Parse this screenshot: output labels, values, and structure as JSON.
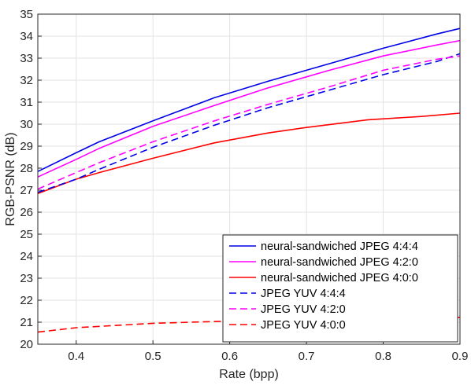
{
  "chart_data": {
    "type": "line",
    "xlabel": "Rate (bpp)",
    "ylabel": "RGB-PSNR (dB)",
    "xlim": [
      0.35,
      0.9
    ],
    "ylim": [
      20,
      35
    ],
    "x_ticks": [
      "0.4",
      "0.5",
      "0.6",
      "0.7",
      "0.8",
      "0.9"
    ],
    "y_ticks": [
      "20",
      "21",
      "22",
      "23",
      "24",
      "25",
      "26",
      "27",
      "28",
      "29",
      "30",
      "31",
      "32",
      "33",
      "34",
      "35"
    ],
    "grid": true,
    "legend_position": "bottom-right",
    "series": [
      {
        "name": "neural-sandwiched JPEG 4:4:4",
        "color": "#0000e6",
        "style": "solid",
        "x": [
          0.35,
          0.4,
          0.43,
          0.5,
          0.58,
          0.65,
          0.73,
          0.8,
          0.87,
          0.9
        ],
        "y": [
          27.85,
          28.7,
          29.2,
          30.15,
          31.2,
          31.95,
          32.75,
          33.45,
          34.1,
          34.35
        ]
      },
      {
        "name": "neural-sandwiched JPEG 4:2:0",
        "color": "#ff00ff",
        "style": "solid",
        "x": [
          0.35,
          0.4,
          0.43,
          0.5,
          0.58,
          0.65,
          0.73,
          0.8,
          0.87,
          0.9
        ],
        "y": [
          27.6,
          28.4,
          28.9,
          29.9,
          30.85,
          31.65,
          32.45,
          33.1,
          33.6,
          33.8
        ]
      },
      {
        "name": "neural-sandwiched JPEG 4:0:0",
        "color": "#ff0000",
        "style": "solid",
        "x": [
          0.35,
          0.4,
          0.43,
          0.5,
          0.58,
          0.65,
          0.7,
          0.78,
          0.85,
          0.9
        ],
        "y": [
          26.85,
          27.5,
          27.8,
          28.45,
          29.15,
          29.6,
          29.85,
          30.2,
          30.35,
          30.5
        ]
      },
      {
        "name": "JPEG YUV 4:4:4",
        "color": "#0000e6",
        "style": "dashed",
        "x": [
          0.35,
          0.4,
          0.43,
          0.5,
          0.58,
          0.65,
          0.73,
          0.8,
          0.87,
          0.9
        ],
        "y": [
          26.9,
          27.5,
          27.95,
          28.95,
          29.95,
          30.75,
          31.55,
          32.25,
          32.85,
          33.2
        ]
      },
      {
        "name": "JPEG YUV 4:2:0",
        "color": "#ff00ff",
        "style": "dashed",
        "x": [
          0.35,
          0.4,
          0.43,
          0.5,
          0.58,
          0.65,
          0.73,
          0.8,
          0.87,
          0.9
        ],
        "y": [
          27.05,
          27.8,
          28.25,
          29.2,
          30.15,
          30.9,
          31.7,
          32.45,
          32.95,
          33.1
        ]
      },
      {
        "name": "JPEG YUV 4:0:0",
        "color": "#ff0000",
        "style": "dashed",
        "x": [
          0.35,
          0.4,
          0.5,
          0.6,
          0.7,
          0.8,
          0.9
        ],
        "y": [
          20.55,
          20.75,
          20.95,
          21.05,
          21.12,
          21.18,
          21.22
        ]
      }
    ]
  }
}
